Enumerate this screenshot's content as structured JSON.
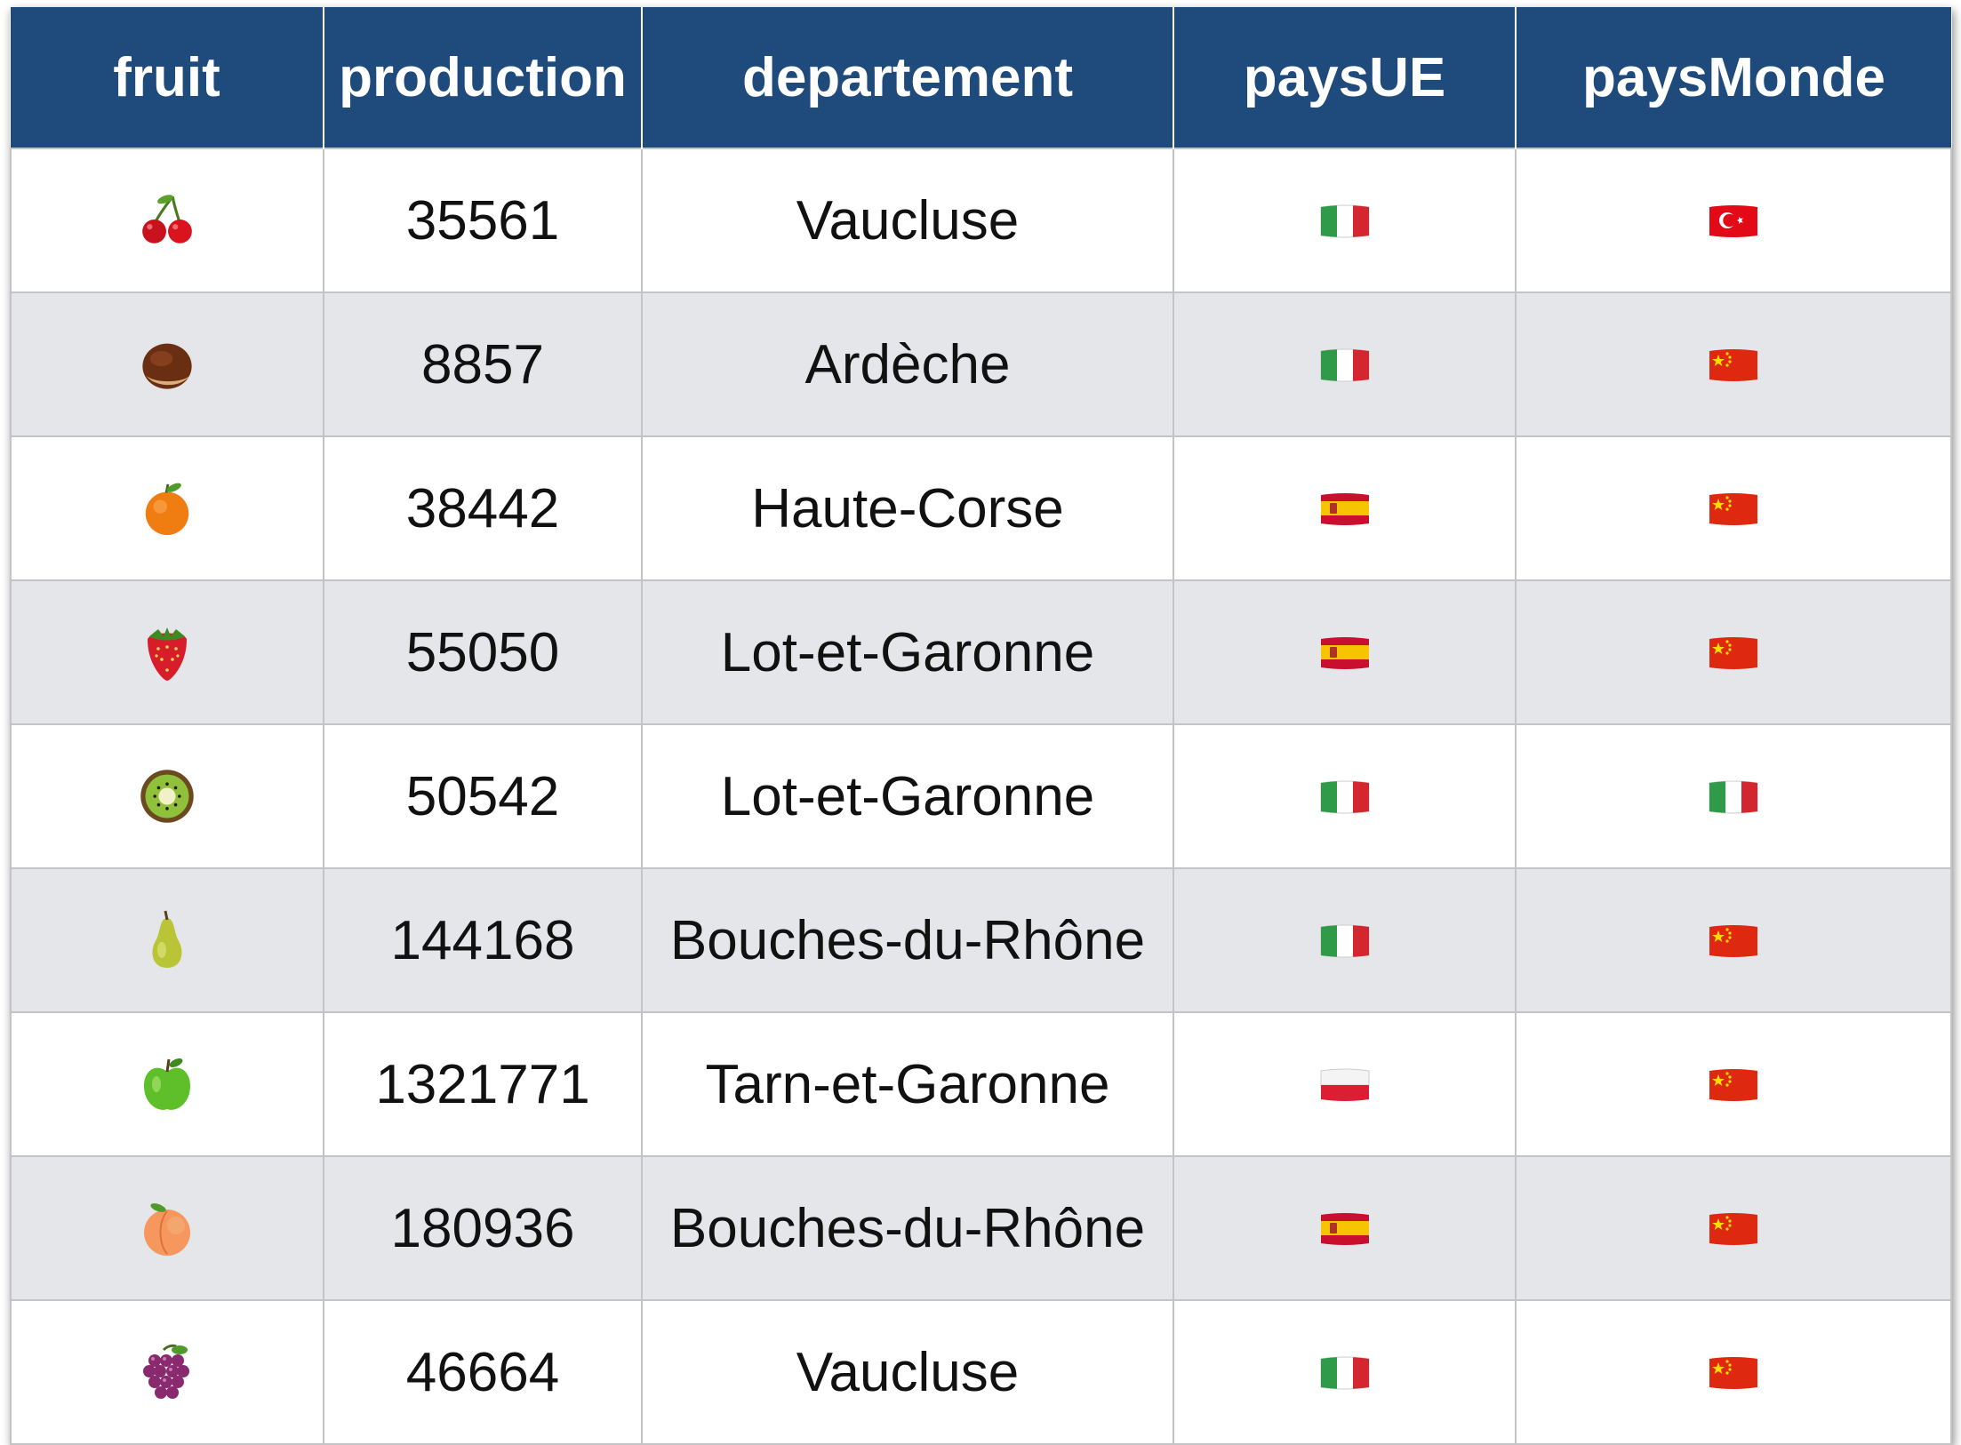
{
  "table": {
    "headers": [
      "fruit",
      "production",
      "departement",
      "paysUE",
      "paysMonde"
    ],
    "rows": [
      {
        "fruit": "cherries-icon",
        "production": "35561",
        "departement": "Vaucluse",
        "paysUE": "italy-flag-icon",
        "paysMonde": "turkey-flag-icon"
      },
      {
        "fruit": "chestnut-icon",
        "production": "8857",
        "departement": "Ardèche",
        "paysUE": "italy-flag-icon",
        "paysMonde": "china-flag-icon"
      },
      {
        "fruit": "tangerine-icon",
        "production": "38442",
        "departement": "Haute-Corse",
        "paysUE": "spain-flag-icon",
        "paysMonde": "china-flag-icon"
      },
      {
        "fruit": "strawberry-icon",
        "production": "55050",
        "departement": "Lot-et-Garonne",
        "paysUE": "spain-flag-icon",
        "paysMonde": "china-flag-icon"
      },
      {
        "fruit": "kiwi-icon",
        "production": "50542",
        "departement": "Lot-et-Garonne",
        "paysUE": "italy-flag-icon",
        "paysMonde": "italy-flag-icon"
      },
      {
        "fruit": "pear-icon",
        "production": "144168",
        "departement": "Bouches-du-Rhône",
        "paysUE": "italy-flag-icon",
        "paysMonde": "china-flag-icon"
      },
      {
        "fruit": "green-apple-icon",
        "production": "1321771",
        "departement": "Tarn-et-Garonne",
        "paysUE": "poland-flag-icon",
        "paysMonde": "china-flag-icon"
      },
      {
        "fruit": "peach-icon",
        "production": "180936",
        "departement": "Bouches-du-Rhône",
        "paysUE": "spain-flag-icon",
        "paysMonde": "china-flag-icon"
      },
      {
        "fruit": "grapes-icon",
        "production": "46664",
        "departement": "Vaucluse",
        "paysUE": "italy-flag-icon",
        "paysMonde": "china-flag-icon"
      }
    ]
  },
  "colors": {
    "header_bg": "#1f4a7c",
    "header_text": "#ffffff",
    "row_alt_bg": "#e5e6ea",
    "grid_line": "#c4c4c6"
  }
}
